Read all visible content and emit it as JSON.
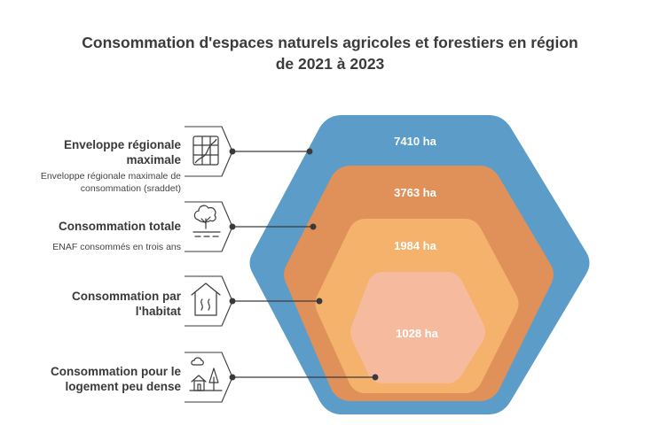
{
  "title": {
    "line1": "Consommation d'espaces naturels agricoles et forestiers en région",
    "line2": "de 2021 à 2023"
  },
  "levels": [
    {
      "value": "7410 ha",
      "title_lines": [
        "Enveloppe régionale",
        "maximale"
      ],
      "desc_lines": [
        "Enveloppe régionale maximale de",
        "consommation (sraddet)"
      ],
      "icon": "map-icon",
      "color": "#5b9cc9"
    },
    {
      "value": "3763 ha",
      "title_lines": [
        "Consommation totale"
      ],
      "desc_lines": [
        "ENAF consommés en trois ans"
      ],
      "icon": "tree-icon",
      "color": "#e09059"
    },
    {
      "value": "1984 ha",
      "title_lines": [
        "Consommation par",
        "l'habitat"
      ],
      "desc_lines": [],
      "icon": "house-icon",
      "color": "#f4b26c"
    },
    {
      "value": "1028 ha",
      "title_lines": [
        "Consommation pour le",
        "logement peu dense"
      ],
      "desc_lines": [],
      "icon": "village-icon",
      "color": "#f6ba9f"
    }
  ]
}
